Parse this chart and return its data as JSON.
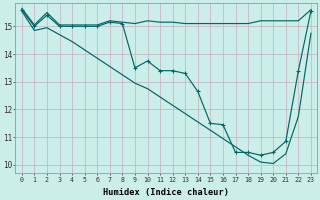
{
  "title": "",
  "xlabel": "Humidex (Indice chaleur)",
  "bg_color": "#cceee8",
  "grid_color_major": "#c8b8c8",
  "grid_color_minor": "#ddd0dd",
  "line_color": "#006666",
  "xlim": [
    -0.5,
    23.5
  ],
  "ylim": [
    9.7,
    15.85
  ],
  "yticks": [
    10,
    11,
    12,
    13,
    14,
    15
  ],
  "xticks": [
    0,
    1,
    2,
    3,
    4,
    5,
    6,
    7,
    8,
    9,
    10,
    11,
    12,
    13,
    14,
    15,
    16,
    17,
    18,
    19,
    20,
    21,
    22,
    23
  ],
  "line1_x": [
    0,
    1,
    2,
    3,
    4,
    5,
    6,
    7,
    8,
    9,
    10,
    11,
    12,
    13,
    14,
    15,
    16,
    17,
    18,
    19,
    20,
    21,
    22,
    23
  ],
  "line1_y": [
    15.65,
    15.05,
    15.5,
    15.05,
    15.05,
    15.05,
    15.05,
    15.2,
    15.15,
    15.1,
    15.2,
    15.15,
    15.15,
    15.1,
    15.1,
    15.1,
    15.1,
    15.1,
    15.1,
    15.2,
    15.2,
    15.2,
    15.2,
    15.6
  ],
  "line2_x": [
    0,
    1,
    2,
    3,
    4,
    5,
    6,
    7,
    8,
    9,
    10,
    11,
    12,
    13,
    14,
    15,
    16,
    17,
    18,
    19,
    20,
    21,
    22,
    23
  ],
  "line2_y": [
    15.6,
    15.0,
    15.4,
    15.0,
    15.0,
    15.0,
    15.0,
    15.15,
    15.1,
    13.5,
    13.75,
    13.4,
    13.4,
    13.3,
    12.65,
    11.5,
    11.45,
    10.45,
    10.45,
    10.35,
    10.45,
    10.85,
    13.4,
    15.55
  ],
  "line3_x": [
    0,
    1,
    2,
    3,
    4,
    5,
    6,
    7,
    8,
    9,
    10,
    11,
    12,
    13,
    14,
    15,
    16,
    17,
    18,
    19,
    20,
    21,
    22,
    23
  ],
  "line3_y": [
    15.55,
    14.85,
    14.95,
    14.7,
    14.45,
    14.15,
    13.85,
    13.55,
    13.25,
    12.95,
    12.75,
    12.45,
    12.15,
    11.85,
    11.55,
    11.25,
    10.95,
    10.65,
    10.35,
    10.1,
    10.05,
    10.4,
    11.75,
    14.75
  ]
}
